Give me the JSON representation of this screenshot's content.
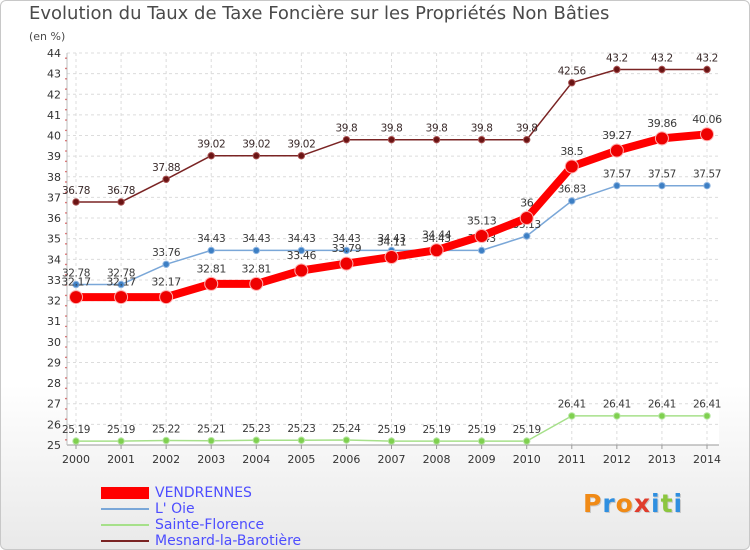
{
  "header": {
    "title": "Evolution du Taux de Taxe Foncière sur les Propriétés Non Bâties",
    "subtitle": "(en %)"
  },
  "logo": {
    "text": "Proxiti",
    "letters": [
      {
        "ch": "P",
        "color": "#f08a16"
      },
      {
        "ch": "r",
        "color": "#2f8fe0"
      },
      {
        "ch": "o",
        "color": "#f08a16"
      },
      {
        "ch": "x",
        "color": "#e03c2c"
      },
      {
        "ch": "i",
        "color": "#2f8fe0"
      },
      {
        "ch": "t",
        "color": "#8cc63f"
      },
      {
        "ch": "i",
        "color": "#2f8fe0"
      }
    ]
  },
  "legend": [
    {
      "label": "VENDRENNES",
      "color": "#ff0000"
    },
    {
      "label": "L' Oie",
      "color": "#7aa7d8"
    },
    {
      "label": "Sainte-Florence",
      "color": "#a6e08a"
    },
    {
      "label": "Mesnard-la-Barotière",
      "color": "#7a2424"
    }
  ],
  "chart_data": {
    "type": "line",
    "title": "Evolution du Taux de Taxe Foncière sur les Propriétés Non Bâties",
    "ylabel": "(en %)",
    "xlabel": "",
    "ylim": [
      25,
      44
    ],
    "grid": true,
    "legend_position": "bottom-left",
    "x": [
      "2000",
      "2001",
      "2002",
      "2003",
      "2004",
      "2005",
      "2006",
      "2007",
      "2008",
      "2009",
      "2010",
      "2011",
      "2012",
      "2013",
      "2014"
    ],
    "yticks": [
      "25",
      "26",
      "27",
      "28",
      "29",
      "30",
      "31",
      "32",
      "33",
      "34",
      "35",
      "36",
      "37",
      "38",
      "39",
      "40",
      "41",
      "42",
      "43",
      "44"
    ],
    "series": [
      {
        "name": "Mesnard-la-Barotière",
        "color": "#7a2424",
        "values": [
          36.78,
          36.78,
          37.88,
          39.02,
          39.02,
          39.02,
          39.8,
          39.8,
          39.8,
          39.8,
          39.8,
          42.56,
          43.2,
          43.2,
          43.2
        ],
        "labels": [
          "36.78",
          "36.78",
          "37.88",
          "39.02",
          "39.02",
          "39.02",
          "39.8",
          "39.8",
          "39.8",
          "39.8",
          "39.8",
          "42.56",
          "43.2",
          "43.2",
          "43.2"
        ]
      },
      {
        "name": "L' Oie",
        "color": "#7aa7d8",
        "values": [
          32.78,
          32.78,
          33.76,
          34.43,
          34.43,
          34.43,
          34.43,
          34.43,
          34.43,
          34.43,
          35.13,
          36.83,
          37.57,
          37.57,
          37.57
        ],
        "labels": [
          "32.78",
          "32.78",
          "33.76",
          "34.43",
          "34.43",
          "34.43",
          "34.43",
          "34.43",
          "34.43",
          "34.43",
          "35.13",
          "36.83",
          "37.57",
          "37.57",
          "37.57"
        ]
      },
      {
        "name": "Sainte-Florence",
        "color": "#a6e08a",
        "values": [
          25.19,
          25.19,
          25.22,
          25.21,
          25.23,
          25.23,
          25.24,
          25.19,
          25.19,
          25.19,
          25.19,
          26.41,
          26.41,
          26.41,
          26.41
        ],
        "labels": [
          "25.19",
          "25.19",
          "25.22",
          "25.21",
          "25.23",
          "25.23",
          "25.24",
          "25.19",
          "25.19",
          "25.19",
          "25.19",
          "26.41",
          "26.41",
          "26.41",
          "26.41"
        ]
      },
      {
        "name": "VENDRENNES",
        "color": "#ff0000",
        "values": [
          32.17,
          32.17,
          32.17,
          32.81,
          32.81,
          33.46,
          33.79,
          34.11,
          34.44,
          35.13,
          36,
          38.5,
          39.27,
          39.86,
          40.06
        ],
        "labels": [
          "32.17",
          "32.17",
          "32.17",
          "32.81",
          "32.81",
          "33.46",
          "33.79",
          "34.11",
          "34.44",
          "35.13",
          "36",
          "38.5",
          "39.27",
          "39.86",
          "40.06"
        ]
      }
    ]
  }
}
